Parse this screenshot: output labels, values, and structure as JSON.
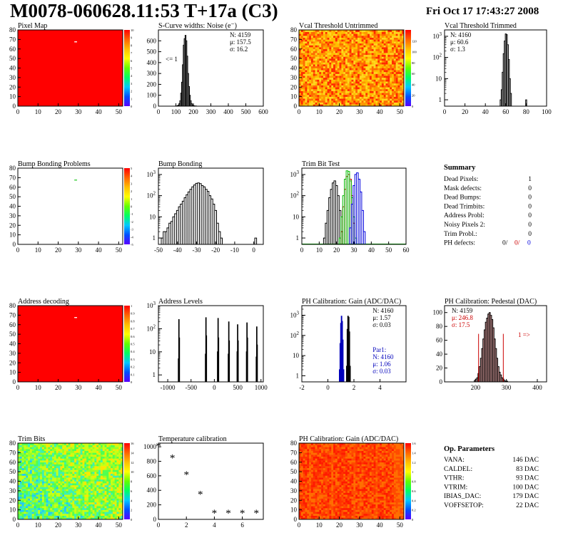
{
  "header": {
    "title": "M0078-060628.11:53 T+17a (C3)",
    "date": "Fri Oct 17 17:43:27 2008"
  },
  "chart_data": [
    {
      "id": "pixel_map",
      "type": "heatmap",
      "title": "Pixel Map",
      "xlabel": "",
      "ylabel": "",
      "xlim": [
        0,
        52
      ],
      "ylim": [
        0,
        80
      ],
      "xticks": [
        0,
        10,
        20,
        30,
        40,
        50
      ],
      "yticks": [
        0,
        10,
        20,
        30,
        40,
        50,
        60,
        70,
        80
      ],
      "fill": "uniform",
      "value_color": "#ff0000",
      "empty_pixels": [
        {
          "x": 28,
          "y": 67
        }
      ],
      "colorbar": {
        "min": 0,
        "max": 10,
        "ticks": [
          0,
          1,
          2,
          3,
          4,
          5,
          6,
          7,
          8,
          9,
          10
        ]
      }
    },
    {
      "id": "scurve_widths",
      "type": "histogram",
      "title": "S-Curve widths: Noise (e⁻)",
      "xlim": [
        0,
        600
      ],
      "ylim": [
        0,
        700
      ],
      "xticks": [
        0,
        100,
        200,
        300,
        400,
        500,
        600
      ],
      "yticks": [
        0,
        100,
        200,
        300,
        400,
        500,
        600
      ],
      "stats": [
        "N: 4159",
        "μ: 157.5",
        "σ: 16.2"
      ],
      "annotation": "<= 1",
      "series": [
        {
          "color": "#000000",
          "bin_width": 5,
          "x": [
            100,
            105,
            110,
            115,
            120,
            125,
            130,
            135,
            140,
            145,
            150,
            155,
            160,
            165,
            170,
            175,
            180,
            185,
            190,
            195,
            200,
            205,
            210,
            215,
            220
          ],
          "values": [
            1,
            2,
            5,
            10,
            25,
            50,
            120,
            220,
            380,
            560,
            620,
            650,
            600,
            460,
            300,
            180,
            100,
            50,
            25,
            12,
            6,
            3,
            2,
            1,
            0
          ]
        }
      ]
    },
    {
      "id": "vcal_untrimmed",
      "type": "heatmap",
      "title": "Vcal Threshold Untrimmed",
      "xlim": [
        0,
        52
      ],
      "ylim": [
        0,
        80
      ],
      "xticks": [
        0,
        10,
        20,
        30,
        40,
        50
      ],
      "yticks": [
        0,
        10,
        20,
        30,
        40,
        50,
        60,
        70,
        80
      ],
      "fill": "noise",
      "palette": [
        "#ff2a00",
        "#ff6a00",
        "#ff9600",
        "#ffbe00",
        "#ffd61e"
      ],
      "colorbar": {
        "min": 0,
        "max": 140,
        "ticks": [
          0,
          20,
          40,
          60,
          80,
          100,
          120
        ]
      }
    },
    {
      "id": "vcal_trimmed",
      "type": "histogram",
      "title": "Vcal Threshold Trimmed",
      "log_y": true,
      "xlim": [
        0,
        100
      ],
      "ylim": [
        0.5,
        2000
      ],
      "xticks": [
        0,
        20,
        40,
        60,
        80,
        100
      ],
      "stats": [
        "N: 4160",
        "μ: 60.6",
        "σ:  1.3"
      ],
      "series": [
        {
          "color": "#000000",
          "bin_width": 1,
          "x": [
            55,
            56,
            57,
            58,
            59,
            60,
            61,
            62,
            63,
            64,
            65,
            66,
            80
          ],
          "values": [
            1,
            3,
            20,
            150,
            600,
            1300,
            1200,
            400,
            80,
            10,
            2,
            0,
            1
          ]
        }
      ]
    },
    {
      "id": "bump_problems",
      "type": "heatmap",
      "title": "Bump Bonding Problems",
      "xlim": [
        0,
        52
      ],
      "ylim": [
        0,
        80
      ],
      "xticks": [
        0,
        10,
        20,
        30,
        40,
        50
      ],
      "yticks": [
        0,
        10,
        20,
        30,
        40,
        50,
        60,
        70,
        80
      ],
      "fill": "empty",
      "marked_pixels": [
        {
          "x": 28,
          "y": 67,
          "color": "#33cc33"
        }
      ],
      "colorbar": {
        "min": -5,
        "max": 5,
        "ticks": [
          -5,
          -4,
          -3,
          -2,
          -1,
          0,
          1,
          2,
          3,
          4,
          5
        ]
      }
    },
    {
      "id": "bump_bonding",
      "type": "histogram",
      "title": "Bump Bonding",
      "log_y": true,
      "xlim": [
        -50,
        5
      ],
      "ylim": [
        0.5,
        2000
      ],
      "xticks": [
        -50,
        -40,
        -30,
        -20,
        -10,
        0
      ],
      "series": [
        {
          "color": "#000000",
          "bin_width": 1,
          "x": [
            -48,
            -47,
            -46,
            -45,
            -44,
            -43,
            -42,
            -41,
            -40,
            -39,
            -38,
            -37,
            -36,
            -35,
            -34,
            -33,
            -32,
            -31,
            -30,
            -29,
            -28,
            -27,
            -26,
            -25,
            -24,
            -23,
            -22,
            -21,
            -20,
            -19,
            -18,
            -17,
            1
          ],
          "values": [
            1,
            2,
            2,
            3,
            5,
            6,
            10,
            14,
            20,
            30,
            40,
            55,
            80,
            110,
            150,
            200,
            260,
            320,
            380,
            400,
            370,
            300,
            260,
            200,
            160,
            100,
            70,
            40,
            20,
            5,
            2,
            1,
            1
          ]
        }
      ]
    },
    {
      "id": "trim_bit_test",
      "type": "histogram",
      "title": "Trim Bit Test",
      "log_y": true,
      "xlim": [
        0,
        60
      ],
      "ylim": [
        0.5,
        2000
      ],
      "xticks": [
        0,
        10,
        20,
        30,
        40,
        50,
        60
      ],
      "series": [
        {
          "color": "#000000",
          "bin_width": 1,
          "x": [
            13,
            14,
            15,
            16,
            17,
            18,
            19,
            20,
            21,
            22,
            23
          ],
          "values": [
            1,
            5,
            20,
            80,
            200,
            400,
            500,
            300,
            100,
            20,
            2
          ]
        },
        {
          "color": "#cc0000",
          "bin_width": 1,
          "x": [
            23,
            24,
            25,
            26,
            27,
            28,
            29,
            30
          ],
          "values": [
            2,
            30,
            200,
            800,
            1000,
            600,
            100,
            5
          ]
        },
        {
          "color": "#00bb00",
          "bin_width": 1,
          "x": [
            22,
            23,
            24,
            25,
            26,
            27,
            28,
            29,
            30,
            31
          ],
          "values": [
            1,
            10,
            100,
            600,
            1500,
            1400,
            500,
            80,
            10,
            1
          ]
        },
        {
          "color": "#0000dd",
          "bin_width": 1,
          "x": [
            28,
            29,
            30,
            31,
            32,
            33,
            34,
            35,
            36
          ],
          "values": [
            3,
            40,
            300,
            1000,
            1200,
            600,
            150,
            20,
            2
          ]
        }
      ]
    },
    {
      "id": "address_decoding",
      "type": "heatmap",
      "title": "Address decoding",
      "xlim": [
        0,
        52
      ],
      "ylim": [
        0,
        80
      ],
      "xticks": [
        0,
        10,
        20,
        30,
        40,
        50
      ],
      "yticks": [
        0,
        10,
        20,
        30,
        40,
        50,
        60,
        70,
        80
      ],
      "fill": "uniform",
      "value_color": "#ff0000",
      "empty_pixels": [
        {
          "x": 28,
          "y": 67
        }
      ],
      "colorbar": {
        "min": 0,
        "max": 1,
        "ticks": [
          0,
          0.1,
          0.2,
          0.3,
          0.4,
          0.5,
          0.6,
          0.7,
          0.8,
          0.9,
          1
        ]
      }
    },
    {
      "id": "address_levels",
      "type": "histogram",
      "title": "Address Levels",
      "log_y": true,
      "xlim": [
        -1200,
        1050
      ],
      "ylim": [
        0.5,
        1000
      ],
      "xticks": [
        -1000,
        -500,
        0,
        500,
        1000
      ],
      "series": [
        {
          "color": "#000000",
          "bin_width": 10,
          "x": [
            -770,
            -760,
            -750,
            -190,
            -180,
            -170,
            70,
            80,
            90,
            300,
            310,
            320,
            490,
            500,
            510,
            690,
            700,
            710,
            900,
            910,
            920
          ],
          "values": [
            5,
            250,
            40,
            8,
            300,
            50,
            10,
            280,
            40,
            8,
            200,
            30,
            10,
            150,
            30,
            10,
            180,
            40,
            6,
            120,
            20
          ]
        }
      ]
    },
    {
      "id": "ph_gain",
      "type": "histogram",
      "title": "PH Calibration: Gain (ADC/DAC)",
      "log_y": true,
      "xlim": [
        -2,
        6
      ],
      "ylim": [
        0.5,
        3000
      ],
      "xticks": [
        -2,
        0,
        2,
        4
      ],
      "stats": [
        "N: 4160",
        "μ: 1.57",
        "σ: 0.03"
      ],
      "fit_stats": [
        "Par1:",
        "N: 4160",
        "μ: 1.06",
        "σ: 0.03"
      ],
      "series": [
        {
          "color": "#000000",
          "bin_width": 0.05,
          "x": [
            1.45,
            1.5,
            1.55,
            1.6,
            1.65,
            1.7
          ],
          "values": [
            3,
            200,
            900,
            800,
            150,
            3
          ]
        },
        {
          "color": "#0000bb",
          "bin_width": 0.05,
          "x": [
            0.9,
            0.95,
            1.0,
            1.05,
            1.1,
            1.15,
            1.2
          ],
          "values": [
            2,
            40,
            400,
            900,
            500,
            60,
            2
          ]
        }
      ]
    },
    {
      "id": "ph_pedestal",
      "type": "histogram",
      "title": "PH Calibration: Pedestal (DAC)",
      "xlim": [
        100,
        430
      ],
      "ylim": [
        0,
        110
      ],
      "xticks": [
        200,
        300,
        400
      ],
      "yticks": [
        0,
        20,
        40,
        60,
        80,
        100
      ],
      "stats": [
        "N: 4159",
        "μ: 246.8",
        "σ: 17.5"
      ],
      "annotation": "1 =>",
      "markers": [
        {
          "x": 210,
          "color": "#cc0000"
        },
        {
          "x": 290,
          "color": "#cc0000"
        }
      ],
      "series": [
        {
          "color": "#000000",
          "fill": "#f0b0b0",
          "bin_width": 4,
          "x": [
            198,
            202,
            206,
            210,
            214,
            218,
            222,
            226,
            230,
            234,
            238,
            242,
            246,
            250,
            254,
            258,
            262,
            266,
            270,
            274,
            278,
            282,
            286,
            290,
            294,
            298,
            302
          ],
          "values": [
            2,
            4,
            6,
            12,
            22,
            34,
            48,
            62,
            75,
            86,
            92,
            98,
            100,
            96,
            90,
            78,
            62,
            48,
            34,
            22,
            14,
            10,
            6,
            4,
            2,
            1,
            1
          ]
        }
      ]
    },
    {
      "id": "trim_bits",
      "type": "heatmap",
      "title": "Trim Bits",
      "xlim": [
        0,
        52
      ],
      "ylim": [
        0,
        80
      ],
      "xticks": [
        0,
        10,
        20,
        30,
        40,
        50
      ],
      "yticks": [
        0,
        10,
        20,
        30,
        40,
        50,
        60,
        70,
        80
      ],
      "fill": "noise",
      "palette": [
        "#1ec8ff",
        "#3cf0b4",
        "#50ff50",
        "#96ff28",
        "#c8ff14",
        "#ffe600"
      ],
      "colorbar": {
        "min": 0,
        "max": 16,
        "ticks": [
          0,
          2,
          4,
          6,
          8,
          10,
          12,
          14,
          16
        ]
      }
    },
    {
      "id": "temperature",
      "type": "scatter",
      "title": "Temperature calibration",
      "xlim": [
        0,
        7.5
      ],
      "ylim": [
        0,
        1050
      ],
      "xticks": [
        0,
        2,
        4,
        6
      ],
      "yticks": [
        0,
        200,
        400,
        600,
        800,
        1000
      ],
      "x": [
        0,
        1,
        2,
        3,
        4,
        5,
        6,
        7
      ],
      "y": [
        1020,
        860,
        630,
        360,
        100,
        100,
        100,
        100
      ]
    },
    {
      "id": "ph_gain_map",
      "type": "heatmap",
      "title": "PH Calibration: Gain (ADC/DAC)",
      "xlim": [
        0,
        52
      ],
      "ylim": [
        0,
        80
      ],
      "xticks": [
        0,
        10,
        20,
        30,
        40,
        50
      ],
      "yticks": [
        0,
        10,
        20,
        30,
        40,
        50,
        60,
        70,
        80
      ],
      "fill": "noise",
      "palette": [
        "#ff1a00",
        "#ff3200",
        "#ff4b00",
        "#ff6e00"
      ],
      "colorbar": {
        "min": 0,
        "max": 1.6,
        "ticks": [
          0,
          0.2,
          0.4,
          0.6,
          0.8,
          1,
          1.2,
          1.4,
          1.6
        ]
      }
    }
  ],
  "summary": {
    "title": "Summary",
    "rows": [
      {
        "label": "Dead Pixels:",
        "value": "1"
      },
      {
        "label": "Mask defects:",
        "value": "0"
      },
      {
        "label": "Dead Bumps:",
        "value": "0"
      },
      {
        "label": "Dead Trimbits:",
        "value": "0"
      },
      {
        "label": "Address Probl:",
        "value": "0"
      },
      {
        "label": "Noisy Pixels 2:",
        "value": "0"
      },
      {
        "label": "Trim Probl.:",
        "value": "0"
      }
    ],
    "ph_defects": {
      "label": "PH defects:",
      "values": [
        "0/",
        "0/",
        "0"
      ],
      "colors": [
        "#000000",
        "#cc0000",
        "#0000dd"
      ]
    }
  },
  "op_parameters": {
    "title": "Op. Parameters",
    "rows": [
      {
        "label": "VANA:",
        "value": "146 DAC"
      },
      {
        "label": "CALDEL:",
        "value": "83 DAC"
      },
      {
        "label": "VTHR:",
        "value": "93 DAC"
      },
      {
        "label": "VTRIM:",
        "value": "100 DAC"
      },
      {
        "label": "IBIAS_DAC:",
        "value": "179 DAC"
      },
      {
        "label": "VOFFSETOP:",
        "value": "22 DAC"
      }
    ]
  }
}
